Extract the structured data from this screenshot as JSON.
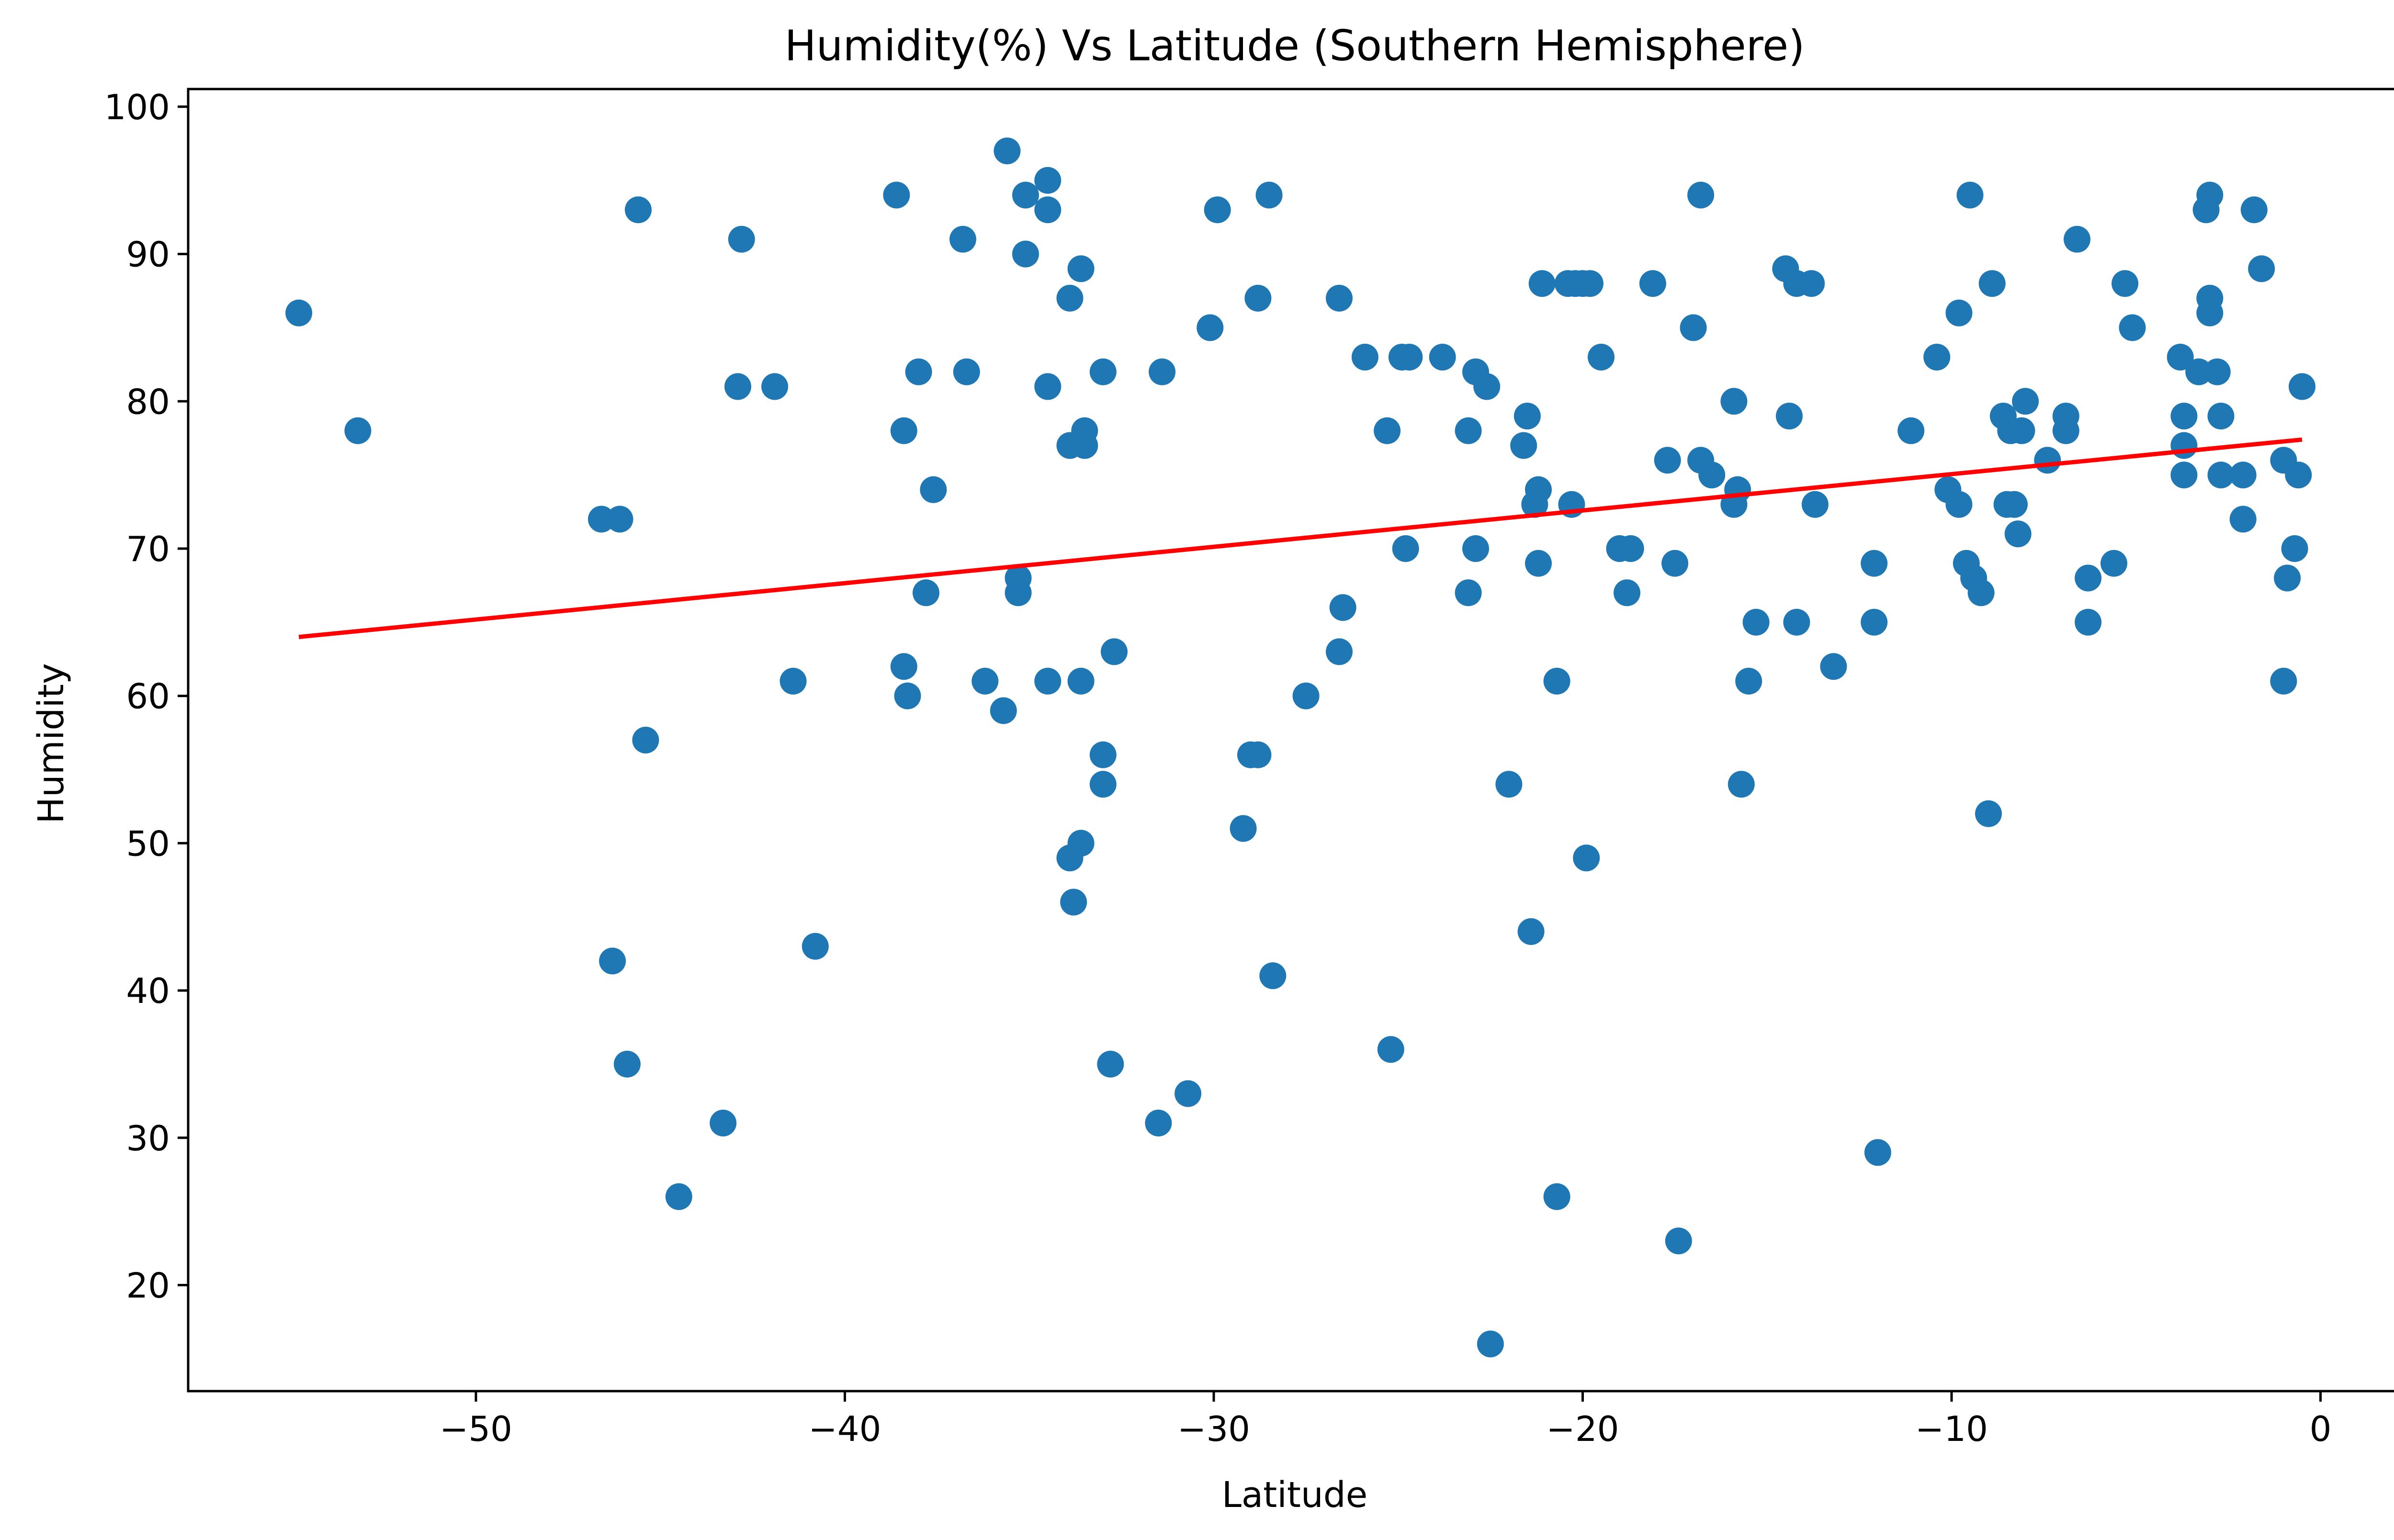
{
  "chart_data": {
    "type": "scatter",
    "title": "Humidity(%) Vs Latitude (Southern Hemisphere)",
    "xlabel": "Latitude",
    "ylabel": "Humidity",
    "xlim": [
      -57.8,
      2.2
    ],
    "ylim": [
      12.8,
      101.2
    ],
    "x_ticks": [
      -50,
      -40,
      -30,
      -20,
      -10,
      0
    ],
    "x_tick_labels": [
      "−50",
      "−40",
      "−30",
      "−20",
      "−10",
      "0"
    ],
    "y_ticks": [
      20,
      30,
      40,
      50,
      60,
      70,
      80,
      90,
      100
    ],
    "y_tick_labels": [
      "20",
      "30",
      "40",
      "50",
      "60",
      "70",
      "80",
      "90",
      "100"
    ],
    "grid": false,
    "legend": "none",
    "series": [
      {
        "type": "scatter",
        "color": "#1f77b4",
        "points": [
          [
            -54.8,
            86
          ],
          [
            -53.2,
            78
          ],
          [
            -46.6,
            72
          ],
          [
            -46.1,
            72
          ],
          [
            -46.3,
            42
          ],
          [
            -45.9,
            35
          ],
          [
            -45.6,
            93
          ],
          [
            -45.4,
            57
          ],
          [
            -44.5,
            26
          ],
          [
            -43.3,
            31
          ],
          [
            -42.8,
            91
          ],
          [
            -42.9,
            81
          ],
          [
            -41.9,
            81
          ],
          [
            -41.4,
            61
          ],
          [
            -40.8,
            43
          ],
          [
            -38.6,
            94
          ],
          [
            -38.4,
            78
          ],
          [
            -38.4,
            62
          ],
          [
            -38.3,
            60
          ],
          [
            -38.0,
            82
          ],
          [
            -37.8,
            67
          ],
          [
            -37.6,
            74
          ],
          [
            -36.8,
            91
          ],
          [
            -36.7,
            82
          ],
          [
            -36.2,
            61
          ],
          [
            -35.7,
            59
          ],
          [
            -35.6,
            97
          ],
          [
            -35.3,
            68
          ],
          [
            -35.3,
            67
          ],
          [
            -35.1,
            94
          ],
          [
            -35.1,
            90
          ],
          [
            -34.5,
            95
          ],
          [
            -34.5,
            93
          ],
          [
            -34.5,
            81
          ],
          [
            -34.5,
            61
          ],
          [
            -33.9,
            87
          ],
          [
            -33.9,
            77
          ],
          [
            -33.9,
            49
          ],
          [
            -33.8,
            46
          ],
          [
            -33.6,
            89
          ],
          [
            -33.6,
            61
          ],
          [
            -33.6,
            50
          ],
          [
            -33.5,
            78
          ],
          [
            -33.5,
            77
          ],
          [
            -33.0,
            82
          ],
          [
            -33.0,
            56
          ],
          [
            -33.0,
            54
          ],
          [
            -32.8,
            35
          ],
          [
            -32.7,
            63
          ],
          [
            -31.5,
            31
          ],
          [
            -31.4,
            82
          ],
          [
            -30.7,
            33
          ],
          [
            -30.1,
            85
          ],
          [
            -29.9,
            93
          ],
          [
            -29.2,
            51
          ],
          [
            -29.0,
            56
          ],
          [
            -28.8,
            56
          ],
          [
            -28.8,
            87
          ],
          [
            -28.5,
            94
          ],
          [
            -28.4,
            41
          ],
          [
            -27.5,
            60
          ],
          [
            -26.6,
            87
          ],
          [
            -26.6,
            63
          ],
          [
            -26.5,
            66
          ],
          [
            -25.9,
            83
          ],
          [
            -25.3,
            78
          ],
          [
            -25.2,
            36
          ],
          [
            -24.9,
            83
          ],
          [
            -24.7,
            83
          ],
          [
            -24.8,
            70
          ],
          [
            -23.8,
            83
          ],
          [
            -23.1,
            78
          ],
          [
            -23.1,
            67
          ],
          [
            -22.9,
            82
          ],
          [
            -22.9,
            70
          ],
          [
            -22.6,
            81
          ],
          [
            -22.5,
            16
          ],
          [
            -22.0,
            54
          ],
          [
            -21.6,
            77
          ],
          [
            -21.5,
            79
          ],
          [
            -21.3,
            73
          ],
          [
            -21.4,
            44
          ],
          [
            -21.2,
            74
          ],
          [
            -21.2,
            69
          ],
          [
            -21.1,
            88
          ],
          [
            -20.7,
            61
          ],
          [
            -20.7,
            26
          ],
          [
            -20.4,
            88
          ],
          [
            -20.2,
            88
          ],
          [
            -20.0,
            88
          ],
          [
            -20.3,
            73
          ],
          [
            -19.8,
            88
          ],
          [
            -19.9,
            49
          ],
          [
            -19.5,
            83
          ],
          [
            -19.0,
            70
          ],
          [
            -18.7,
            70
          ],
          [
            -18.8,
            67
          ],
          [
            -18.1,
            88
          ],
          [
            -17.7,
            76
          ],
          [
            -17.5,
            69
          ],
          [
            -17.4,
            23
          ],
          [
            -17.0,
            85
          ],
          [
            -16.8,
            94
          ],
          [
            -16.8,
            76
          ],
          [
            -16.5,
            75
          ],
          [
            -15.9,
            80
          ],
          [
            -15.9,
            73
          ],
          [
            -15.8,
            74
          ],
          [
            -15.7,
            54
          ],
          [
            -15.5,
            61
          ],
          [
            -15.3,
            65
          ],
          [
            -14.5,
            89
          ],
          [
            -14.4,
            79
          ],
          [
            -14.2,
            88
          ],
          [
            -14.2,
            65
          ],
          [
            -13.8,
            88
          ],
          [
            -13.7,
            73
          ],
          [
            -13.2,
            62
          ],
          [
            -12.1,
            69
          ],
          [
            -12.1,
            65
          ],
          [
            -12.0,
            29
          ],
          [
            -11.1,
            78
          ],
          [
            -10.4,
            83
          ],
          [
            -10.1,
            74
          ],
          [
            -9.8,
            86
          ],
          [
            -9.8,
            73
          ],
          [
            -9.6,
            69
          ],
          [
            -9.5,
            94
          ],
          [
            -9.4,
            68
          ],
          [
            -9.2,
            67
          ],
          [
            -9.0,
            52
          ],
          [
            -8.9,
            88
          ],
          [
            -8.6,
            79
          ],
          [
            -8.5,
            73
          ],
          [
            -8.4,
            78
          ],
          [
            -8.3,
            73
          ],
          [
            -8.2,
            71
          ],
          [
            -8.0,
            80
          ],
          [
            -8.1,
            78
          ],
          [
            -7.4,
            76
          ],
          [
            -6.9,
            79
          ],
          [
            -6.9,
            78
          ],
          [
            -6.6,
            91
          ],
          [
            -6.3,
            68
          ],
          [
            -6.3,
            65
          ],
          [
            -5.6,
            69
          ],
          [
            -5.3,
            88
          ],
          [
            -5.1,
            85
          ],
          [
            -3.8,
            83
          ],
          [
            -3.7,
            79
          ],
          [
            -3.7,
            77
          ],
          [
            -3.7,
            75
          ],
          [
            -3.3,
            82
          ],
          [
            -3.1,
            93
          ],
          [
            -3.0,
            94
          ],
          [
            -3.0,
            87
          ],
          [
            -3.0,
            86
          ],
          [
            -2.8,
            82
          ],
          [
            -2.7,
            79
          ],
          [
            -2.7,
            75
          ],
          [
            -2.1,
            75
          ],
          [
            -2.1,
            72
          ],
          [
            -1.8,
            93
          ],
          [
            -1.6,
            89
          ],
          [
            -1.0,
            76
          ],
          [
            -0.9,
            68
          ],
          [
            -1.0,
            61
          ],
          [
            -0.7,
            70
          ],
          [
            -0.6,
            75
          ],
          [
            -0.5,
            81
          ]
        ]
      }
    ],
    "regression_line": {
      "color": "#ff0000",
      "x": [
        -54.8,
        -0.5
      ],
      "y": [
        64.0,
        77.4
      ]
    }
  }
}
